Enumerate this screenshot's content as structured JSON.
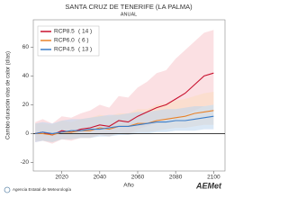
{
  "chart_data": {
    "type": "line",
    "title": "SANTA CRUZ DE TENERIFE (LA PALMA)",
    "subtitle": "ANUAL",
    "x_label": "Año",
    "y_label": "Cambio duración olas de calor (días)",
    "x": [
      2006,
      2010,
      2015,
      2020,
      2025,
      2030,
      2035,
      2040,
      2045,
      2050,
      2055,
      2060,
      2065,
      2070,
      2075,
      2080,
      2085,
      2090,
      2095,
      2100
    ],
    "series": [
      {
        "name": "RCP8.5",
        "legend_note": "( 14 )",
        "color": "#c8102e",
        "band_color": "#f7c6cc",
        "values": [
          0,
          1,
          -1,
          2,
          1,
          3,
          4,
          6,
          5,
          9,
          8,
          12,
          15,
          18,
          20,
          24,
          28,
          34,
          40,
          42
        ],
        "low": [
          -6,
          -5,
          -7,
          -4,
          -5,
          -3,
          -3,
          -1,
          -2,
          1,
          0,
          3,
          5,
          7,
          9,
          11,
          13,
          16,
          19,
          20
        ],
        "high": [
          8,
          10,
          7,
          12,
          11,
          14,
          16,
          20,
          18,
          26,
          25,
          32,
          36,
          42,
          44,
          52,
          58,
          64,
          70,
          72
        ]
      },
      {
        "name": "RCP6.0",
        "legend_note": "(  6 )",
        "color": "#e8822a",
        "band_color": "#fbdcbf",
        "values": [
          0,
          0,
          -1,
          1,
          1,
          2,
          2,
          4,
          3,
          5,
          5,
          7,
          7,
          9,
          10,
          11,
          12,
          14,
          15,
          16
        ],
        "low": [
          -5,
          -5,
          -6,
          -4,
          -4,
          -3,
          -3,
          -1,
          -2,
          0,
          -1,
          1,
          1,
          2,
          3,
          4,
          4,
          5,
          6,
          6
        ],
        "high": [
          7,
          7,
          6,
          9,
          8,
          10,
          11,
          13,
          12,
          14,
          14,
          17,
          17,
          20,
          21,
          23,
          24,
          26,
          28,
          29
        ]
      },
      {
        "name": "RCP4.5",
        "legend_note": "( 13 )",
        "color": "#3a7dc9",
        "band_color": "#bcd6ef",
        "values": [
          0,
          1,
          0,
          1,
          2,
          2,
          3,
          3,
          4,
          5,
          5,
          6,
          7,
          8,
          8,
          9,
          9,
          10,
          11,
          12
        ],
        "low": [
          -6,
          -5,
          -6,
          -4,
          -4,
          -3,
          -3,
          -2,
          -2,
          -1,
          -1,
          0,
          0,
          1,
          1,
          2,
          2,
          2,
          3,
          3
        ],
        "high": [
          7,
          8,
          7,
          9,
          10,
          10,
          11,
          12,
          13,
          13,
          14,
          15,
          15,
          16,
          17,
          17,
          18,
          19,
          19,
          20
        ]
      }
    ],
    "xlim": [
      2005,
      2106
    ],
    "xticks": [
      2020,
      2040,
      2060,
      2080,
      2100
    ],
    "ylim": [
      -26,
      79
    ],
    "yticks": [
      -20,
      0,
      20,
      40,
      60
    ],
    "zero_line": true,
    "legend": "upper left"
  },
  "footer": {
    "agency": "Agencia Estatal de Meteorología",
    "logo": "AEMet"
  }
}
